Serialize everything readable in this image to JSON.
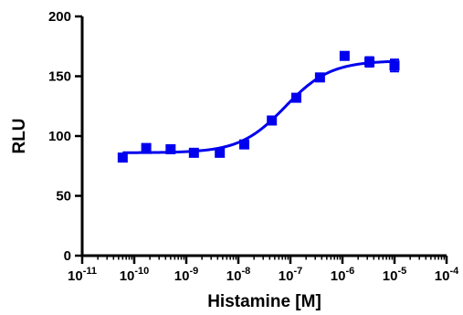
{
  "chart_data": {
    "type": "scatter",
    "title": "",
    "xlabel": "Histamine [M]",
    "ylabel": "RLU",
    "xscale": "log",
    "xlim": [
      1e-11,
      0.0001
    ],
    "ylim": [
      0,
      200
    ],
    "grid": false,
    "x_tick_labels": [
      {
        "base": "10",
        "exp": "-11",
        "value": 1e-11
      },
      {
        "base": "10",
        "exp": "-10",
        "value": 1e-10
      },
      {
        "base": "10",
        "exp": "-9",
        "value": 1e-09
      },
      {
        "base": "10",
        "exp": "-8",
        "value": 1e-08
      },
      {
        "base": "10",
        "exp": "-7",
        "value": 1e-07
      },
      {
        "base": "10",
        "exp": "-6",
        "value": 1e-06
      },
      {
        "base": "10",
        "exp": "-5",
        "value": 1e-05
      },
      {
        "base": "10",
        "exp": "-4",
        "value": 0.0001
      }
    ],
    "y_tick_labels": [
      "0",
      "50",
      "100",
      "150",
      "200"
    ],
    "y_ticks": [
      0,
      50,
      100,
      150,
      200
    ],
    "color": "#0000ee",
    "points": [
      {
        "x": 6e-11,
        "y": 82,
        "err": 2
      },
      {
        "x": 1.7e-10,
        "y": 90,
        "err": 2
      },
      {
        "x": 5e-10,
        "y": 89,
        "err": 2
      },
      {
        "x": 1.4e-09,
        "y": 86,
        "err": 2
      },
      {
        "x": 4.4e-09,
        "y": 86,
        "err": 2
      },
      {
        "x": 1.3e-08,
        "y": 93,
        "err": 2
      },
      {
        "x": 4.4e-08,
        "y": 113,
        "err": 2
      },
      {
        "x": 1.3e-07,
        "y": 132,
        "err": 2
      },
      {
        "x": 3.7e-07,
        "y": 149,
        "err": 2
      },
      {
        "x": 1.1e-06,
        "y": 167,
        "err": 2
      },
      {
        "x": 3.3e-06,
        "y": 162,
        "err": 4
      },
      {
        "x": 1e-05,
        "y": 159,
        "err": 5
      }
    ],
    "fit": {
      "model": "sigmoidal dose-response",
      "bottom": 86,
      "top": 163,
      "logEC50": -7.1,
      "hill": 1.0,
      "xrange": [
        6e-11,
        1e-05
      ]
    }
  }
}
